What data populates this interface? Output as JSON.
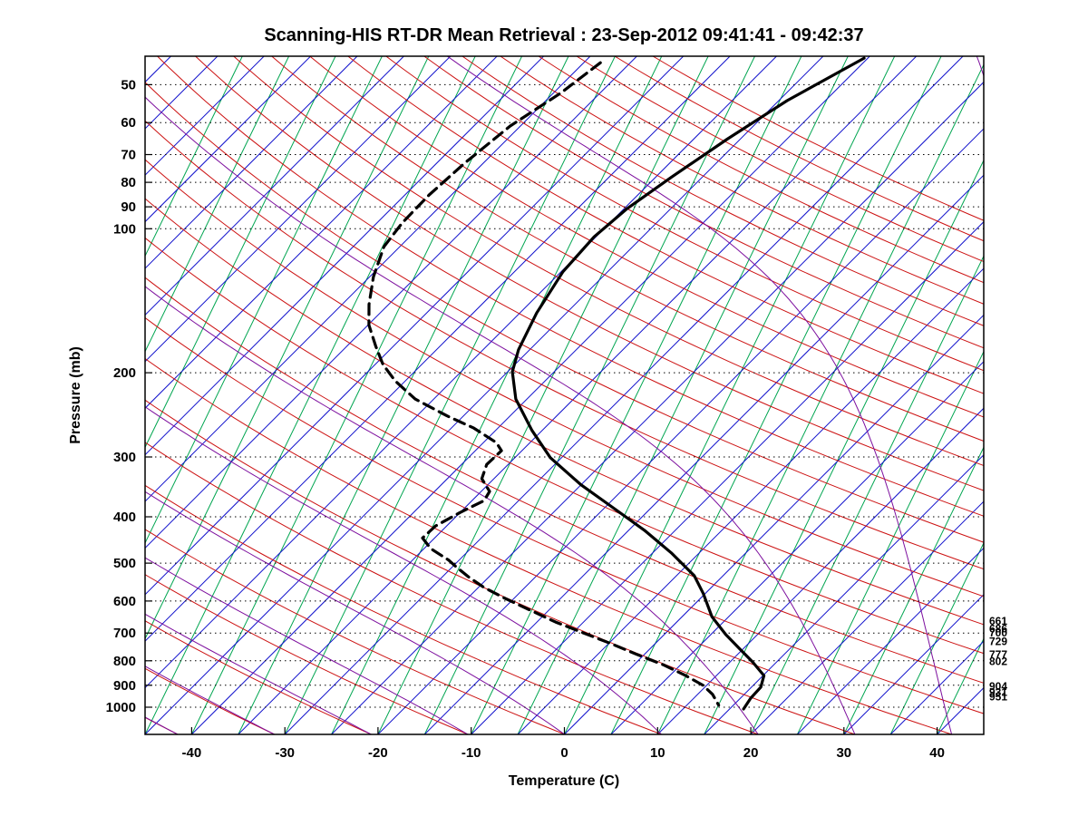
{
  "chart_data": {
    "type": "skewt_log_p",
    "title": "Scanning-HIS RT-DR Mean Retrieval : 23-Sep-2012 09:41:41 - 09:42:37",
    "xlabel": "Temperature (C)",
    "ylabel": "Pressure (mb)",
    "x_ticks": [
      -40,
      -30,
      -20,
      -10,
      0,
      10,
      20,
      30,
      40
    ],
    "y_ticks": [
      50,
      60,
      70,
      80,
      90,
      100,
      200,
      300,
      400,
      500,
      600,
      700,
      800,
      900,
      1000
    ],
    "x_range_c": [
      -45,
      45
    ],
    "pressure_range_mb": [
      43.6,
      1140
    ],
    "skew_deg_c_per_decade": 51.34,
    "grid": "dotted horizontal lines at pressure ticks",
    "level_labels_right_mb": [
      661,
      686,
      700,
      729,
      777,
      802,
      904,
      931,
      951
    ],
    "background_lines": {
      "isotherms": {
        "color": "#1111cc",
        "min": -120,
        "max": 45,
        "step": 5
      },
      "dry_adiabats": {
        "color": "#cc1111",
        "min": -60,
        "max": 240,
        "step": 10
      },
      "moist_adiabats": {
        "color": "#7d0f9e",
        "min": -60,
        "max": 40,
        "step": 10
      },
      "mixing_lines": {
        "color": "#00a550",
        "min": -70,
        "max": 45,
        "step": 5,
        "skew_c_per_decade": 25
      }
    },
    "series": [
      {
        "name": "temperature",
        "style": "solid",
        "color": "#000000",
        "points_p_t": [
          [
            44,
            -40.4
          ],
          [
            54,
            -44.1
          ],
          [
            65,
            -46.4
          ],
          [
            78,
            -48.3
          ],
          [
            91,
            -49.7
          ],
          [
            104,
            -50.2
          ],
          [
            123,
            -49.8
          ],
          [
            150,
            -48.2
          ],
          [
            179,
            -46.2
          ],
          [
            199,
            -44.5
          ],
          [
            227,
            -41.2
          ],
          [
            264,
            -36.1
          ],
          [
            301,
            -31.2
          ],
          [
            343,
            -25.0
          ],
          [
            383,
            -19.1
          ],
          [
            427,
            -13.3
          ],
          [
            476,
            -8.0
          ],
          [
            531,
            -3.1
          ],
          [
            579,
            -0.2
          ],
          [
            647,
            3.2
          ],
          [
            705,
            6.6
          ],
          [
            753,
            9.5
          ],
          [
            804,
            12.4
          ],
          [
            859,
            15.1
          ],
          [
            908,
            16.0
          ],
          [
            957,
            16.1
          ],
          [
            1009,
            16.5
          ]
        ]
      },
      {
        "name": "dewpoint",
        "style": "dashed",
        "color": "#000000",
        "points_p_t": [
          [
            45,
            -68.2
          ],
          [
            52,
            -69.2
          ],
          [
            61,
            -71.1
          ],
          [
            73,
            -72.0
          ],
          [
            85,
            -72.4
          ],
          [
            97,
            -72.3
          ],
          [
            109,
            -71.7
          ],
          [
            126,
            -69.6
          ],
          [
            144,
            -67.1
          ],
          [
            159,
            -64.9
          ],
          [
            176,
            -61.9
          ],
          [
            192,
            -59.2
          ],
          [
            208,
            -56.1
          ],
          [
            227,
            -52.0
          ],
          [
            246,
            -46.8
          ],
          [
            261,
            -42.6
          ],
          [
            280,
            -38.6
          ],
          [
            291,
            -37.2
          ],
          [
            311,
            -37.3
          ],
          [
            333,
            -36.3
          ],
          [
            354,
            -34.1
          ],
          [
            370,
            -33.7
          ],
          [
            392,
            -35.0
          ],
          [
            418,
            -36.2
          ],
          [
            443,
            -36.3
          ],
          [
            466,
            -34.3
          ],
          [
            493,
            -31.1
          ],
          [
            508,
            -29.7
          ],
          [
            533,
            -27.3
          ],
          [
            562,
            -24.4
          ],
          [
            593,
            -20.9
          ],
          [
            627,
            -17.0
          ],
          [
            664,
            -13.0
          ],
          [
            700,
            -8.8
          ],
          [
            736,
            -4.8
          ],
          [
            776,
            -0.8
          ],
          [
            815,
            3.1
          ],
          [
            859,
            6.7
          ],
          [
            900,
            9.6
          ],
          [
            940,
            11.6
          ],
          [
            990,
            13.4
          ]
        ]
      }
    ]
  }
}
